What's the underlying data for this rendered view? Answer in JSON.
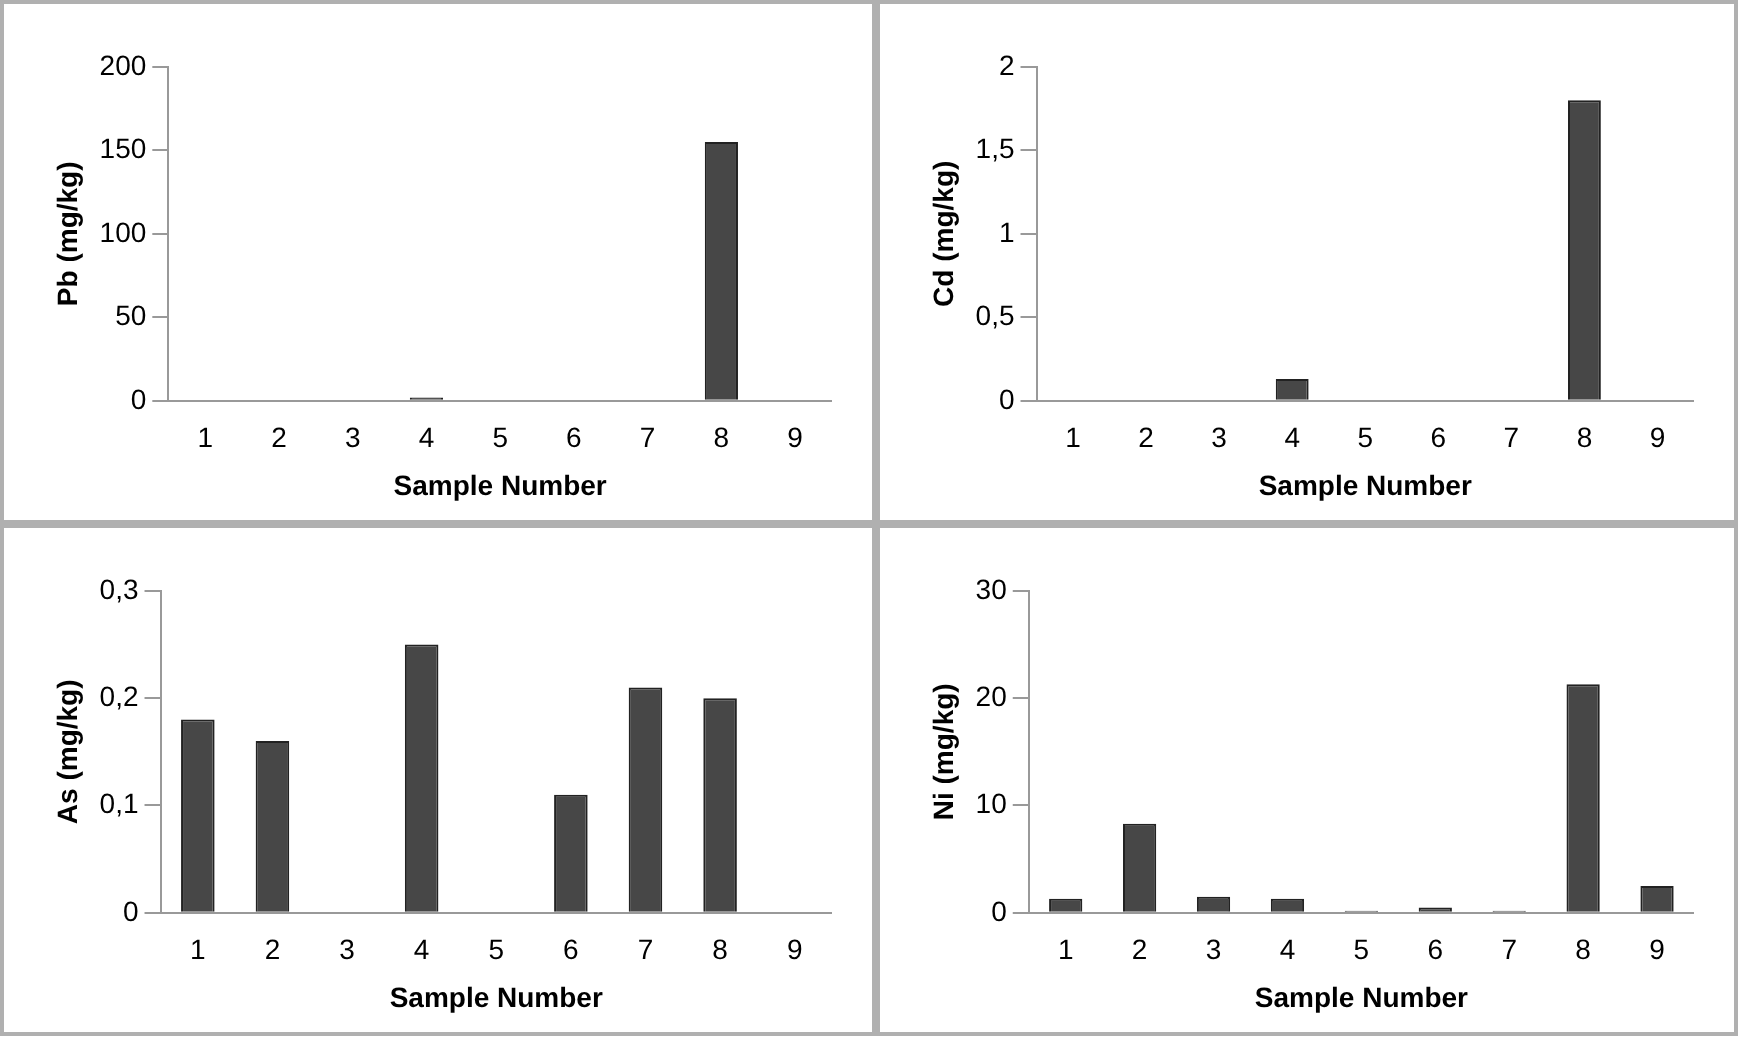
{
  "chart_data": [
    {
      "type": "bar",
      "ylabel": "Pb (mg/kg)",
      "xlabel": "Sample Number",
      "categories": [
        "1",
        "2",
        "3",
        "4",
        "5",
        "6",
        "7",
        "8",
        "9"
      ],
      "values": [
        0,
        0,
        0,
        2,
        0,
        0,
        0,
        155,
        0
      ],
      "color": "#474747",
      "ylim": [
        0,
        200
      ],
      "yticks": [
        0,
        50,
        100,
        150,
        200
      ],
      "grid": false,
      "legend": false
    },
    {
      "type": "bar",
      "ylabel": "Cd (mg/kg)",
      "xlabel": "Sample Number",
      "categories": [
        "1",
        "2",
        "3",
        "4",
        "5",
        "6",
        "7",
        "8",
        "9"
      ],
      "values": [
        0,
        0,
        0,
        0.13,
        0,
        0,
        0,
        1.8,
        0
      ],
      "color": "#474747",
      "ylim": [
        0,
        2
      ],
      "yticks": [
        0,
        {
          "value": 0.5,
          "label": "0,5"
        },
        1,
        {
          "value": 1.5,
          "label": "1,5"
        },
        2
      ],
      "grid": false,
      "legend": false
    },
    {
      "type": "bar",
      "ylabel": "As (mg/kg)",
      "xlabel": "Sample Number",
      "categories": [
        "1",
        "2",
        "3",
        "4",
        "5",
        "6",
        "7",
        "8",
        "9"
      ],
      "values": [
        0.18,
        0.16,
        0,
        0.25,
        0,
        0.11,
        0.21,
        0.2,
        0
      ],
      "color": "#474747",
      "ylim": [
        0,
        0.3
      ],
      "yticks": [
        0,
        {
          "value": 0.1,
          "label": "0,1"
        },
        {
          "value": 0.2,
          "label": "0,2"
        },
        {
          "value": 0.3,
          "label": "0,3"
        }
      ],
      "grid": false,
      "legend": false
    },
    {
      "type": "bar",
      "ylabel": "Ni (mg/kg)",
      "xlabel": "Sample Number",
      "categories": [
        "1",
        "2",
        "3",
        "4",
        "5",
        "6",
        "7",
        "8",
        "9"
      ],
      "values": [
        1.3,
        8.3,
        1.5,
        1.3,
        0.2,
        0.5,
        0.2,
        21.3,
        2.5
      ],
      "color": "#474747",
      "ylim": [
        0,
        30
      ],
      "yticks": [
        0,
        10,
        20,
        30
      ],
      "grid": false,
      "legend": false
    }
  ]
}
